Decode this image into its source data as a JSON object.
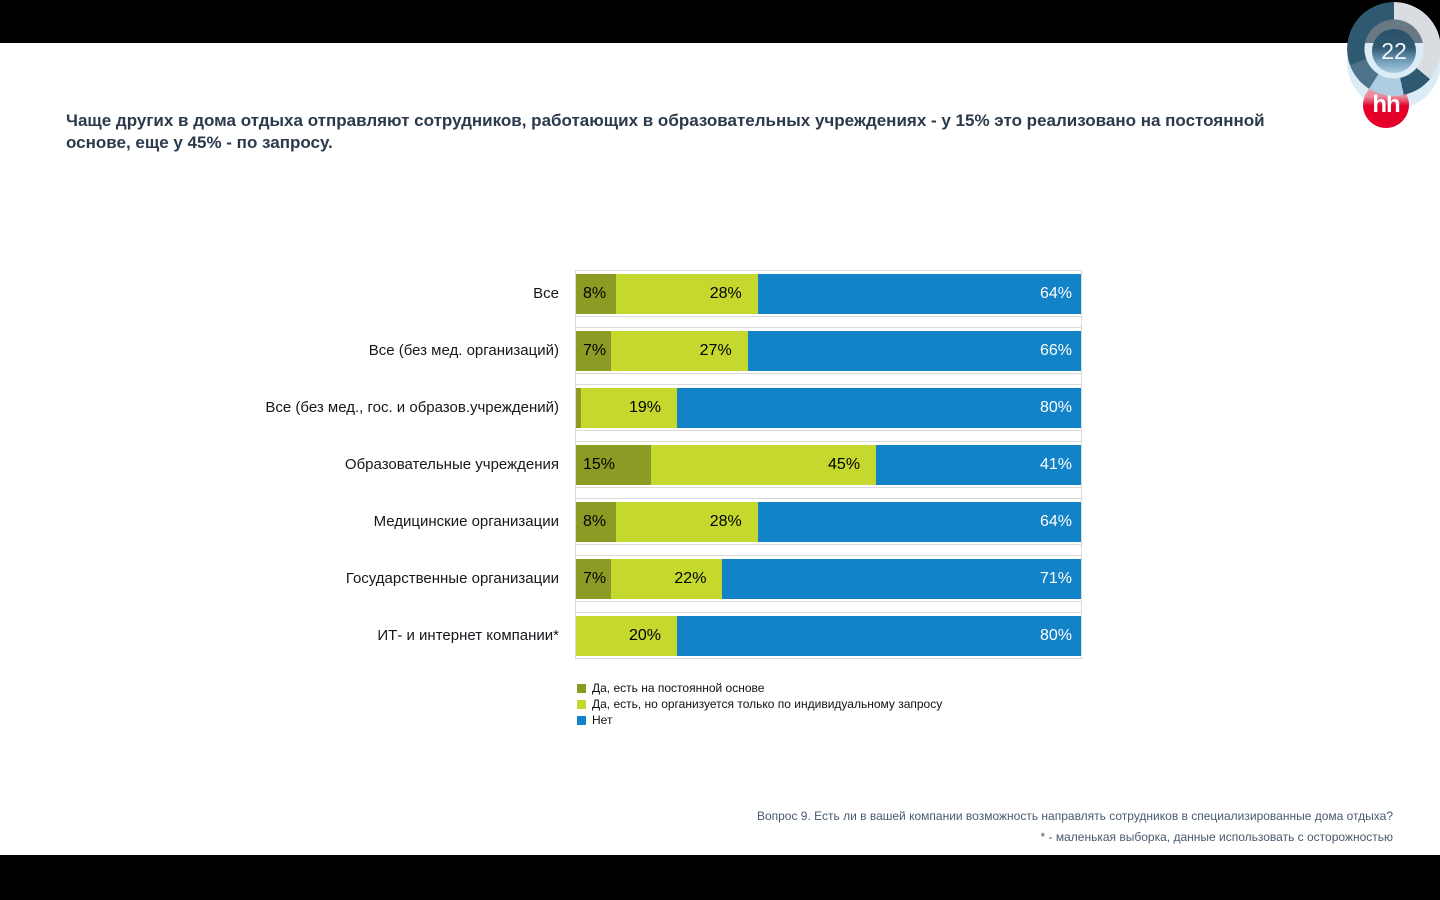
{
  "slide": {
    "page_number": "22",
    "logo_text": "hh",
    "title_line1": "Чаще других в дома отдыха отправляют сотрудников, работающих в образовательных учреждениях - у 15% это реализовано на постоянной",
    "title_line2": "основе, еще у 45% - по запросу."
  },
  "chart_data": {
    "type": "bar",
    "stacked": true,
    "orientation": "horizontal",
    "xlim": [
      0,
      100
    ],
    "value_suffix": "%",
    "grid": "row-frames",
    "legend_position": "bottom-left",
    "categories": [
      "Все",
      "Все (без мед. организаций)",
      "Все (без мед., гос. и образов.учреждений)",
      "Образовательные учреждения",
      "Медицинские организации",
      "Государственные организации",
      "ИТ- и интернет компании*"
    ],
    "series": [
      {
        "name": "Да, есть на постоянной основе",
        "color": "#8c9b24",
        "label_color": "#000000",
        "values": [
          8,
          7,
          1,
          15,
          8,
          7,
          0
        ]
      },
      {
        "name": "Да, есть, но организуется только по индивидуальному запросу",
        "color": "#c4d82e",
        "label_color": "#000000",
        "values": [
          28,
          27,
          19,
          45,
          28,
          22,
          20
        ]
      },
      {
        "name": "Нет",
        "color": "#1283c6",
        "label_color": "#ffffff",
        "values": [
          64,
          66,
          80,
          41,
          64,
          71,
          80
        ]
      }
    ]
  },
  "footnotes": {
    "line1": "Вопрос 9. Есть ли в вашей компании возможность направлять сотрудников в специализированные дома отдыха?",
    "line2": "* - маленькая выборка, данные использовать с осторожностью"
  },
  "colors": {
    "series_permanent": "#8c9b24",
    "series_on_request": "#c4d82e",
    "series_no": "#1283c6",
    "hh_red": "#e4002b",
    "donut_dark": "#2f5970",
    "donut_gray": "#d9dde1",
    "title_text": "#2b3a4b",
    "footnote_text": "#4a5a6e",
    "row_border": "#d9d9d9"
  }
}
